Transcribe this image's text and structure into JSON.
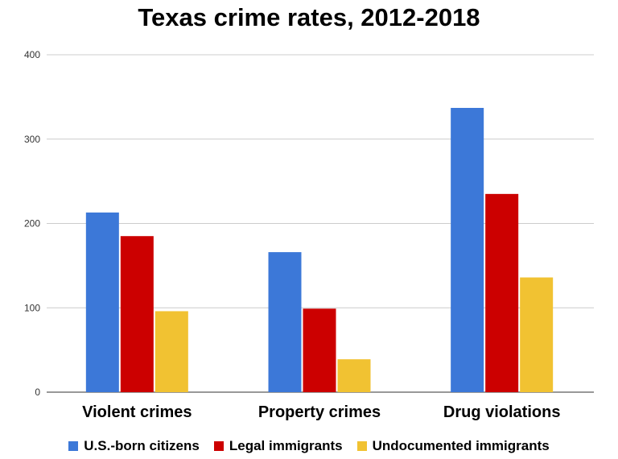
{
  "chart_data": {
    "type": "bar",
    "title": "Texas crime rates, 2012-2018",
    "categories": [
      "Violent crimes",
      "Property crimes",
      "Drug violations"
    ],
    "series": [
      {
        "name": "U.S.-born citizens",
        "color": "#3c78d8",
        "values": [
          213,
          166,
          337
        ]
      },
      {
        "name": "Legal immigrants",
        "color": "#cc0000",
        "values": [
          185,
          99,
          235
        ]
      },
      {
        "name": "Undocumented immigrants",
        "color": "#f1c232",
        "values": [
          96,
          39,
          136
        ]
      }
    ],
    "ylim": [
      0,
      400
    ],
    "yticks": [
      "0",
      "100",
      "200",
      "300",
      "400"
    ],
    "grid": true,
    "legend_position": "bottom"
  }
}
